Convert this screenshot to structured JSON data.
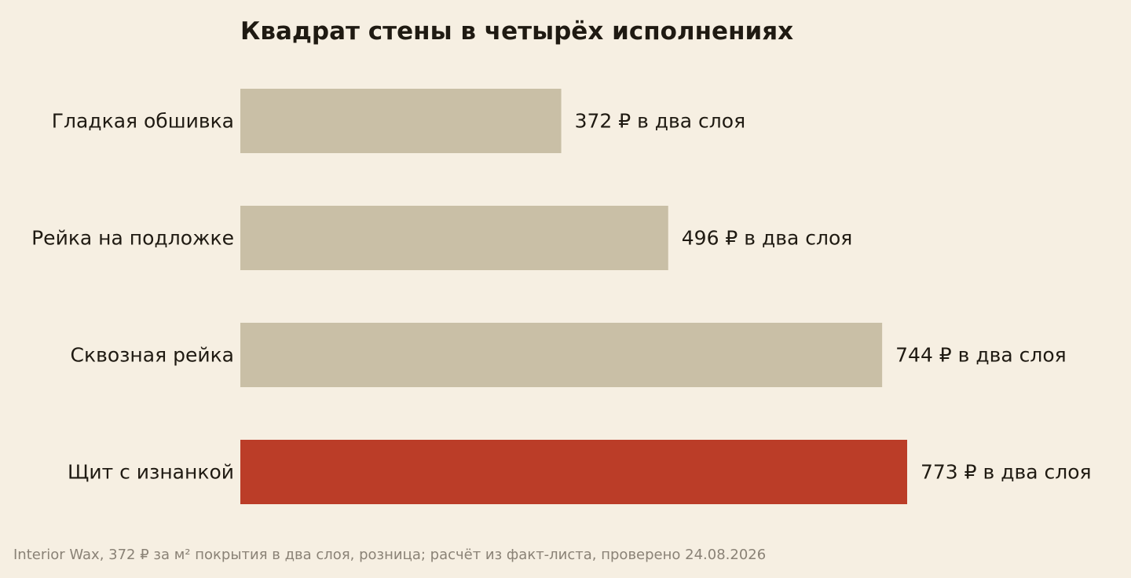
{
  "chart_data": {
    "type": "bar",
    "orientation": "horizontal",
    "title": "Квадрат стены в четырёх исполнениях",
    "categories": [
      "Гладкая обшивка",
      "Рейка на подложке",
      "Сквозная рейка",
      "Щит с изнанкой"
    ],
    "values": [
      372,
      496,
      744,
      773
    ],
    "value_labels": [
      "372 ₽ в два слоя",
      "496 ₽ в два слоя",
      "744 ₽ в два слоя",
      "773 ₽ в два слоя"
    ],
    "highlighted_index": 3,
    "xlim": [
      0,
      773
    ],
    "grid": false,
    "xlabel": "",
    "ylabel": ""
  },
  "colors": {
    "background": "#f6efe2",
    "bar": "#c9bfa6",
    "highlight": "#bb3d28",
    "text": "#1f1a12",
    "note": "#8a8276"
  },
  "footer": {
    "note": "Interior Wax, 372 ₽ за м² покрытия в два слоя, розница; расчёт из факт-листа, проверено 24.08.2026"
  }
}
